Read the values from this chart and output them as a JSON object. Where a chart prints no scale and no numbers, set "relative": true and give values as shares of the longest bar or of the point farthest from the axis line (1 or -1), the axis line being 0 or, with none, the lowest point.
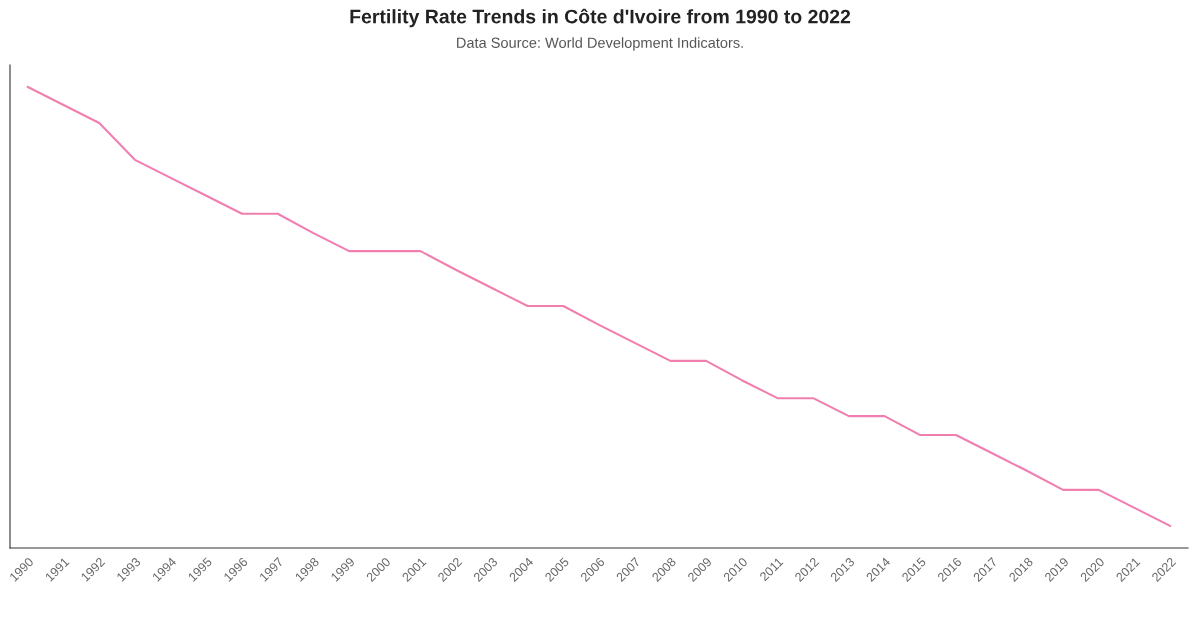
{
  "chart_data": {
    "type": "line",
    "title": "Fertility Rate Trends in Côte d'Ivoire from 1990 to 2022",
    "subtitle": "Data Source: World Development Indicators.",
    "categories": [
      "1990",
      "1991",
      "1992",
      "1993",
      "1994",
      "1995",
      "1996",
      "1997",
      "1998",
      "1999",
      "2000",
      "2001",
      "2002",
      "2003",
      "2004",
      "2005",
      "2006",
      "2007",
      "2008",
      "2009",
      "2010",
      "2011",
      "2012",
      "2013",
      "2014",
      "2015",
      "2016",
      "2017",
      "2018",
      "2019",
      "2020",
      "2021",
      "2022"
    ],
    "relative": true,
    "series": [
      {
        "color": "#f07fb0",
        "values": [
          1,
          0.961,
          0.922,
          0.842,
          0.803,
          0.764,
          0.725,
          0.725,
          0.683,
          0.644,
          0.644,
          0.644,
          0.603,
          0.564,
          0.525,
          0.525,
          0.484,
          0.445,
          0.406,
          0.406,
          0.364,
          0.325,
          0.325,
          0.286,
          0.286,
          0.245,
          0.245,
          0.206,
          0.167,
          0.126,
          0.126,
          0.087,
          0.048
        ]
      }
    ],
    "grid": false,
    "legend": false,
    "marker": "none",
    "line_style": "solid"
  }
}
